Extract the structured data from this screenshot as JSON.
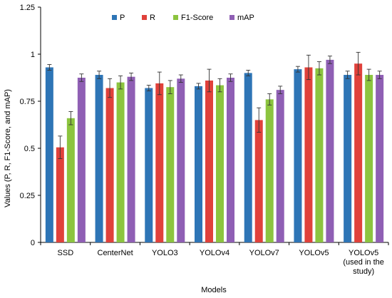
{
  "chart_data": {
    "type": "bar",
    "title": "",
    "xlabel": "Models",
    "ylabel": "Values (P, R, F1-Score, and mAP)",
    "ylim": [
      0,
      1.25
    ],
    "yticks": [
      0,
      0.25,
      0.5,
      0.75,
      1,
      1.25
    ],
    "ytick_labels": [
      "0",
      "0.25",
      "0.5",
      "0.75",
      "1",
      "1.25"
    ],
    "categories": [
      "SSD",
      "CenterNet",
      "YOLO3",
      "YOLOv4",
      "YOLOv7",
      "YOLOv5",
      "YOLOv5 (used in the study)"
    ],
    "category_label_lines": [
      [
        "SSD"
      ],
      [
        "CenterNet"
      ],
      [
        "YOLO3"
      ],
      [
        "YOLOv4"
      ],
      [
        "YOLOv7"
      ],
      [
        "YOLOv5"
      ],
      [
        "YOLOv5",
        "(used in the",
        "study)"
      ]
    ],
    "legend_position": "top",
    "grid": false,
    "series": [
      {
        "name": "P",
        "color": "#2e75b6",
        "values": [
          0.93,
          0.89,
          0.82,
          0.83,
          0.9,
          0.92,
          0.89
        ],
        "errors": [
          0.015,
          0.02,
          0.015,
          0.015,
          0.015,
          0.015,
          0.02
        ]
      },
      {
        "name": "R",
        "color": "#e0413b",
        "values": [
          0.505,
          0.82,
          0.845,
          0.86,
          0.65,
          0.93,
          0.95
        ],
        "errors": [
          0.06,
          0.05,
          0.06,
          0.06,
          0.065,
          0.065,
          0.06
        ]
      },
      {
        "name": "F1-Score",
        "color": "#8cc43f",
        "values": [
          0.66,
          0.85,
          0.825,
          0.835,
          0.76,
          0.925,
          0.89
        ],
        "errors": [
          0.035,
          0.035,
          0.035,
          0.035,
          0.03,
          0.035,
          0.03
        ]
      },
      {
        "name": "mAP",
        "color": "#8f5fb4",
        "values": [
          0.875,
          0.88,
          0.87,
          0.875,
          0.81,
          0.97,
          0.89
        ],
        "errors": [
          0.02,
          0.02,
          0.02,
          0.02,
          0.02,
          0.02,
          0.02
        ]
      }
    ]
  }
}
